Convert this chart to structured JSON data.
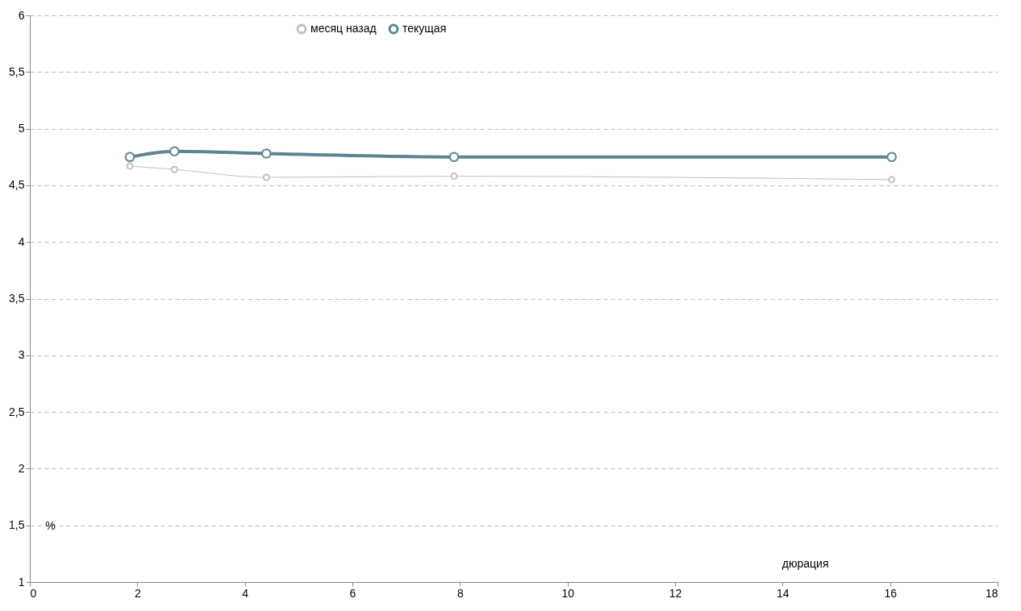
{
  "chart_data": {
    "type": "line",
    "xlabel": "дюрация",
    "ylabel": "%",
    "xlim": [
      0,
      18
    ],
    "xticks": [
      0,
      2,
      4,
      6,
      8,
      10,
      12,
      14,
      16,
      18
    ],
    "ylim": [
      1,
      6
    ],
    "yticks": [
      1,
      {
        "value": 1.5,
        "label": "1,5"
      },
      2,
      {
        "value": 2.5,
        "label": "2,5"
      },
      3,
      {
        "value": 3.5,
        "label": "3,5"
      },
      4,
      {
        "value": 4.5,
        "label": "4,5"
      },
      5,
      {
        "value": 5.5,
        "label": "5,5"
      },
      6
    ],
    "grid": "y",
    "legend": "top",
    "marker": "circle",
    "line_style": "solid",
    "series": [
      {
        "name": "месяц назад",
        "color": "#c0c0c0",
        "x": [
          1.86,
          2.69,
          4.4,
          7.89,
          16.03
        ],
        "values": [
          4.67,
          4.64,
          4.57,
          4.58,
          4.55
        ]
      },
      {
        "name": "текущая",
        "color": "#5b8591",
        "x": [
          1.86,
          2.69,
          4.4,
          7.89,
          16.03
        ],
        "values": [
          4.75,
          4.8,
          4.78,
          4.75,
          4.75
        ]
      }
    ]
  }
}
